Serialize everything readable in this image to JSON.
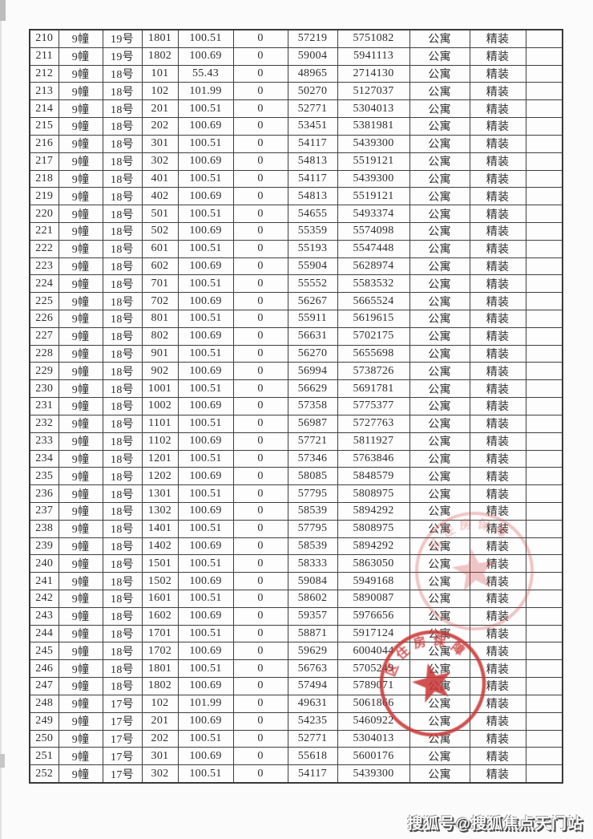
{
  "page": {
    "background": "#fbfbfb"
  },
  "table": {
    "columns": [
      "seq",
      "building",
      "unit",
      "room",
      "area",
      "col6",
      "unit_price",
      "total_price",
      "usage",
      "decoration",
      "remark"
    ],
    "rows": [
      [
        "210",
        "9幢",
        "19号",
        "1801",
        "100.51",
        "0",
        "57219",
        "5751082",
        "公寓",
        "精装",
        ""
      ],
      [
        "211",
        "9幢",
        "19号",
        "1802",
        "100.69",
        "0",
        "59004",
        "5941113",
        "公寓",
        "精装",
        ""
      ],
      [
        "212",
        "9幢",
        "18号",
        "101",
        "55.43",
        "0",
        "48965",
        "2714130",
        "公寓",
        "精装",
        ""
      ],
      [
        "213",
        "9幢",
        "18号",
        "102",
        "101.99",
        "0",
        "50270",
        "5127037",
        "公寓",
        "精装",
        ""
      ],
      [
        "214",
        "9幢",
        "18号",
        "201",
        "100.51",
        "0",
        "52771",
        "5304013",
        "公寓",
        "精装",
        ""
      ],
      [
        "215",
        "9幢",
        "18号",
        "202",
        "100.69",
        "0",
        "53451",
        "5381981",
        "公寓",
        "精装",
        ""
      ],
      [
        "216",
        "9幢",
        "18号",
        "301",
        "100.51",
        "0",
        "54117",
        "5439300",
        "公寓",
        "精装",
        ""
      ],
      [
        "217",
        "9幢",
        "18号",
        "302",
        "100.69",
        "0",
        "54813",
        "5519121",
        "公寓",
        "精装",
        ""
      ],
      [
        "218",
        "9幢",
        "18号",
        "401",
        "100.51",
        "0",
        "54117",
        "5439300",
        "公寓",
        "精装",
        ""
      ],
      [
        "219",
        "9幢",
        "18号",
        "402",
        "100.69",
        "0",
        "54813",
        "5519121",
        "公寓",
        "精装",
        ""
      ],
      [
        "220",
        "9幢",
        "18号",
        "501",
        "100.51",
        "0",
        "54655",
        "5493374",
        "公寓",
        "精装",
        ""
      ],
      [
        "221",
        "9幢",
        "18号",
        "502",
        "100.69",
        "0",
        "55359",
        "5574098",
        "公寓",
        "精装",
        ""
      ],
      [
        "222",
        "9幢",
        "18号",
        "601",
        "100.51",
        "0",
        "55193",
        "5547448",
        "公寓",
        "精装",
        ""
      ],
      [
        "223",
        "9幢",
        "18号",
        "602",
        "100.69",
        "0",
        "55904",
        "5628974",
        "公寓",
        "精装",
        ""
      ],
      [
        "224",
        "9幢",
        "18号",
        "701",
        "100.51",
        "0",
        "55552",
        "5583532",
        "公寓",
        "精装",
        ""
      ],
      [
        "225",
        "9幢",
        "18号",
        "702",
        "100.69",
        "0",
        "56267",
        "5665524",
        "公寓",
        "精装",
        ""
      ],
      [
        "226",
        "9幢",
        "18号",
        "801",
        "100.51",
        "0",
        "55911",
        "5619615",
        "公寓",
        "精装",
        ""
      ],
      [
        "227",
        "9幢",
        "18号",
        "802",
        "100.69",
        "0",
        "56631",
        "5702175",
        "公寓",
        "精装",
        ""
      ],
      [
        "228",
        "9幢",
        "18号",
        "901",
        "100.51",
        "0",
        "56270",
        "5655698",
        "公寓",
        "精装",
        ""
      ],
      [
        "229",
        "9幢",
        "18号",
        "902",
        "100.69",
        "0",
        "56994",
        "5738726",
        "公寓",
        "精装",
        ""
      ],
      [
        "230",
        "9幢",
        "18号",
        "1001",
        "100.51",
        "0",
        "56629",
        "5691781",
        "公寓",
        "精装",
        ""
      ],
      [
        "231",
        "9幢",
        "18号",
        "1002",
        "100.69",
        "0",
        "57358",
        "5775377",
        "公寓",
        "精装",
        ""
      ],
      [
        "232",
        "9幢",
        "18号",
        "1101",
        "100.51",
        "0",
        "56987",
        "5727763",
        "公寓",
        "精装",
        ""
      ],
      [
        "233",
        "9幢",
        "18号",
        "1102",
        "100.69",
        "0",
        "57721",
        "5811927",
        "公寓",
        "精装",
        ""
      ],
      [
        "234",
        "9幢",
        "18号",
        "1201",
        "100.51",
        "0",
        "57346",
        "5763846",
        "公寓",
        "精装",
        ""
      ],
      [
        "235",
        "9幢",
        "18号",
        "1202",
        "100.69",
        "0",
        "58085",
        "5848579",
        "公寓",
        "精装",
        ""
      ],
      [
        "236",
        "9幢",
        "18号",
        "1301",
        "100.51",
        "0",
        "57795",
        "5808975",
        "公寓",
        "精装",
        ""
      ],
      [
        "237",
        "9幢",
        "18号",
        "1302",
        "100.69",
        "0",
        "58539",
        "5894292",
        "公寓",
        "精装",
        ""
      ],
      [
        "238",
        "9幢",
        "18号",
        "1401",
        "100.51",
        "0",
        "57795",
        "5808975",
        "公寓",
        "精装",
        ""
      ],
      [
        "239",
        "9幢",
        "18号",
        "1402",
        "100.69",
        "0",
        "58539",
        "5894292",
        "公寓",
        "精装",
        ""
      ],
      [
        "240",
        "9幢",
        "18号",
        "1501",
        "100.51",
        "0",
        "58333",
        "5863050",
        "公寓",
        "精装",
        ""
      ],
      [
        "241",
        "9幢",
        "18号",
        "1502",
        "100.69",
        "0",
        "59084",
        "5949168",
        "公寓",
        "精装",
        ""
      ],
      [
        "242",
        "9幢",
        "18号",
        "1601",
        "100.51",
        "0",
        "58602",
        "5890087",
        "公寓",
        "精装",
        ""
      ],
      [
        "243",
        "9幢",
        "18号",
        "1602",
        "100.69",
        "0",
        "59357",
        "5976656",
        "公寓",
        "精装",
        ""
      ],
      [
        "244",
        "9幢",
        "18号",
        "1701",
        "100.51",
        "0",
        "58871",
        "5917124",
        "公寓",
        "精装",
        ""
      ],
      [
        "245",
        "9幢",
        "18号",
        "1702",
        "100.69",
        "0",
        "59629",
        "6004044",
        "公寓",
        "精装",
        ""
      ],
      [
        "246",
        "9幢",
        "18号",
        "1801",
        "100.51",
        "0",
        "56763",
        "5705249",
        "公寓",
        "精装",
        ""
      ],
      [
        "247",
        "9幢",
        "18号",
        "1802",
        "100.69",
        "0",
        "57494",
        "5789071",
        "公寓",
        "精装",
        ""
      ],
      [
        "248",
        "9幢",
        "17号",
        "102",
        "101.99",
        "0",
        "49631",
        "5061866",
        "公寓",
        "精装",
        ""
      ],
      [
        "249",
        "9幢",
        "17号",
        "201",
        "100.69",
        "0",
        "54235",
        "5460922",
        "公寓",
        "精装",
        ""
      ],
      [
        "250",
        "9幢",
        "17号",
        "202",
        "100.51",
        "0",
        "52771",
        "5304013",
        "公寓",
        "精装",
        ""
      ],
      [
        "251",
        "9幢",
        "17号",
        "301",
        "100.69",
        "0",
        "55618",
        "5600176",
        "公寓",
        "精装",
        ""
      ],
      [
        "252",
        "9幢",
        "17号",
        "302",
        "100.51",
        "0",
        "54117",
        "5439300",
        "公寓",
        "精装",
        ""
      ]
    ]
  },
  "seal": {
    "arc_text": "区住房保障",
    "color": "#c93434",
    "impressions": [
      {
        "opacity": "0.30"
      },
      {
        "opacity": "0.85"
      }
    ]
  },
  "watermark": {
    "text": "搜狐号@搜狐焦点天门站"
  }
}
